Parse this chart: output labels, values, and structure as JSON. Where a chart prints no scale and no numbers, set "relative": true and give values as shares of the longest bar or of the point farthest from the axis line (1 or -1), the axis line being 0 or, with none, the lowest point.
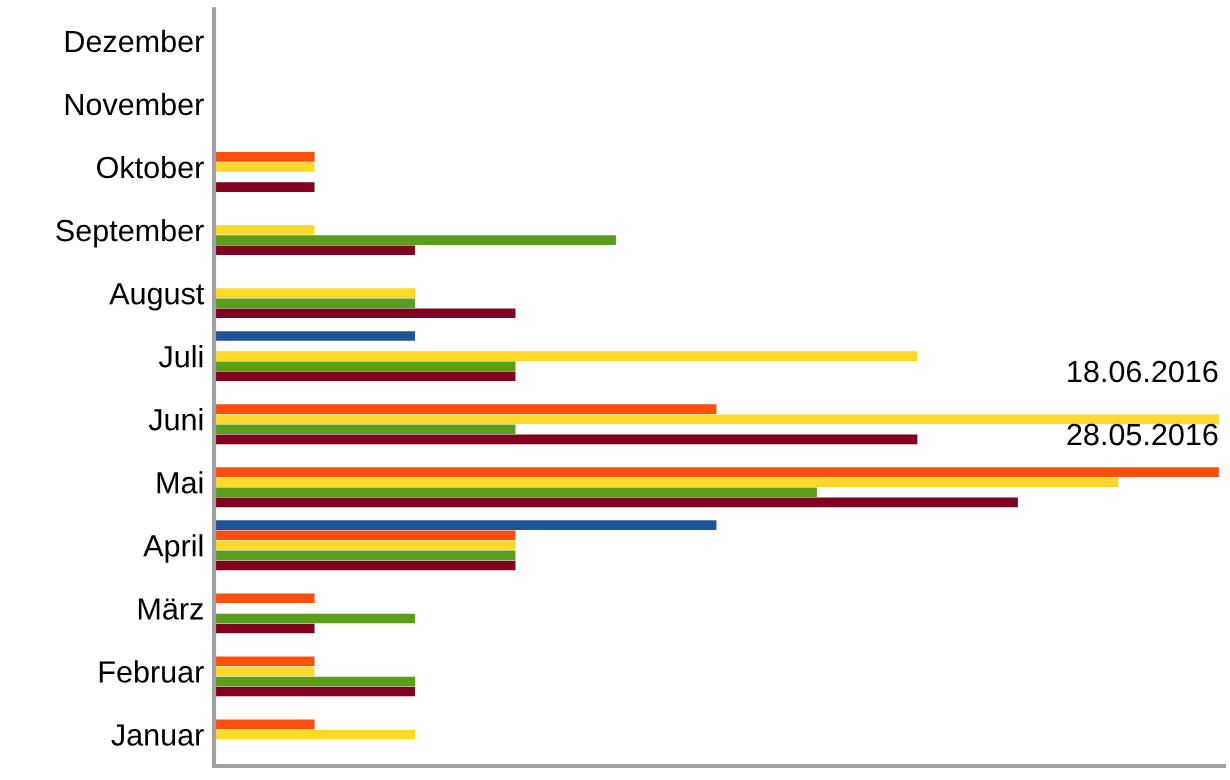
{
  "chart_data": {
    "type": "bar",
    "orientation": "horizontal",
    "relative": true,
    "grid": false,
    "legend": false,
    "categories": [
      "Dezember",
      "November",
      "Oktober",
      "September",
      "August",
      "Juli",
      "Juni",
      "Mai",
      "April",
      "März",
      "Februar",
      "Januar"
    ],
    "series": [
      {
        "color": "#1f5597",
        "values": [
          null,
          null,
          null,
          null,
          null,
          0.2,
          null,
          null,
          0.5,
          null,
          null,
          null
        ]
      },
      {
        "color": "#ff4f0f",
        "values": [
          null,
          null,
          0.1,
          null,
          null,
          null,
          0.5,
          1,
          0.3,
          0.1,
          0.1,
          0.1
        ]
      },
      {
        "color": "#ffd92a",
        "values": [
          null,
          null,
          0.1,
          0.1,
          0.2,
          0.7,
          1,
          0.9,
          0.3,
          null,
          0.1,
          0.2
        ]
      },
      {
        "color": "#5a9e1e",
        "values": [
          null,
          null,
          null,
          0.4,
          0.2,
          0.3,
          0.3,
          0.6,
          0.3,
          0.2,
          0.2,
          null
        ]
      },
      {
        "color": "#80001f",
        "values": [
          null,
          null,
          0.1,
          0.2,
          0.3,
          0.3,
          0.7,
          0.8,
          0.3,
          0.1,
          0.2,
          null
        ]
      }
    ],
    "annotations": [
      {
        "text": "18.06.2016",
        "x": 1,
        "y": "Juni"
      },
      {
        "text": "28.05.2016",
        "x": 1,
        "y": "Mai"
      }
    ]
  }
}
